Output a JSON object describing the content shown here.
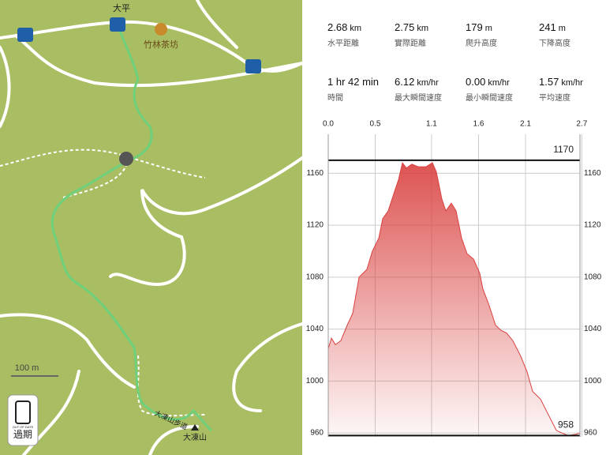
{
  "map": {
    "place_top": "大平",
    "teahouse": "竹林茶坊",
    "scale": "100 m",
    "trail": "大凍山步道",
    "peak": "大凍山",
    "badge_small": "OUT OF DATE",
    "badge": "過期"
  },
  "stats": [
    {
      "value": "2.68",
      "unit": "km",
      "label": "水平距離"
    },
    {
      "value": "2.75",
      "unit": "km",
      "label": "實際距離"
    },
    {
      "value": "179",
      "unit": "m",
      "label": "爬升高度"
    },
    {
      "value": "241",
      "unit": "m",
      "label": "下降高度"
    },
    {
      "value": "1 hr 42 min",
      "label": "時間"
    },
    {
      "value": "6.12",
      "unit": "km/hr",
      "label": "最大瞬間速度"
    },
    {
      "value": "0.00",
      "unit": "km/hr",
      "label": "最小瞬間速度"
    },
    {
      "value": "1.57",
      "unit": "km/hr",
      "label": "平均速度"
    }
  ],
  "chart_data": {
    "type": "area",
    "color": "#d9413f",
    "grid": true,
    "x": [
      0,
      0.034,
      0.076,
      0.134,
      0.202,
      0.26,
      0.328,
      0.412,
      0.47,
      0.538,
      0.58,
      0.638,
      0.706,
      0.748,
      0.79,
      0.832,
      0.89,
      0.958,
      1.042,
      1.109,
      1.151,
      1.21,
      1.252,
      1.31,
      1.361,
      1.42,
      1.478,
      1.546,
      1.613,
      1.646,
      1.714,
      1.781,
      1.84,
      1.898,
      1.966,
      2.05,
      2.117,
      2.176,
      2.26,
      2.344,
      2.428,
      2.486,
      2.554,
      2.638,
      2.68
    ],
    "values": [
      1025,
      1033,
      1028,
      1031,
      1043,
      1052,
      1080,
      1086,
      1100,
      1110,
      1125,
      1131,
      1146,
      1155,
      1168,
      1164,
      1167,
      1165,
      1165,
      1168,
      1161,
      1140,
      1131,
      1137,
      1131,
      1110,
      1098,
      1094,
      1083,
      1071,
      1058,
      1043,
      1039,
      1037,
      1031,
      1019,
      1007,
      992,
      986,
      974,
      962,
      960,
      958,
      959,
      960
    ],
    "xlim": [
      0,
      2.68
    ],
    "xticks": [
      {
        "value": 0,
        "label": "0.0"
      },
      0.5,
      1.1,
      1.6,
      2.1,
      2.7
    ],
    "ylim": [
      957,
      1190
    ],
    "yticks": [
      960,
      1000,
      1040,
      1080,
      1120,
      1160
    ],
    "annotations": [
      1170,
      958
    ]
  }
}
